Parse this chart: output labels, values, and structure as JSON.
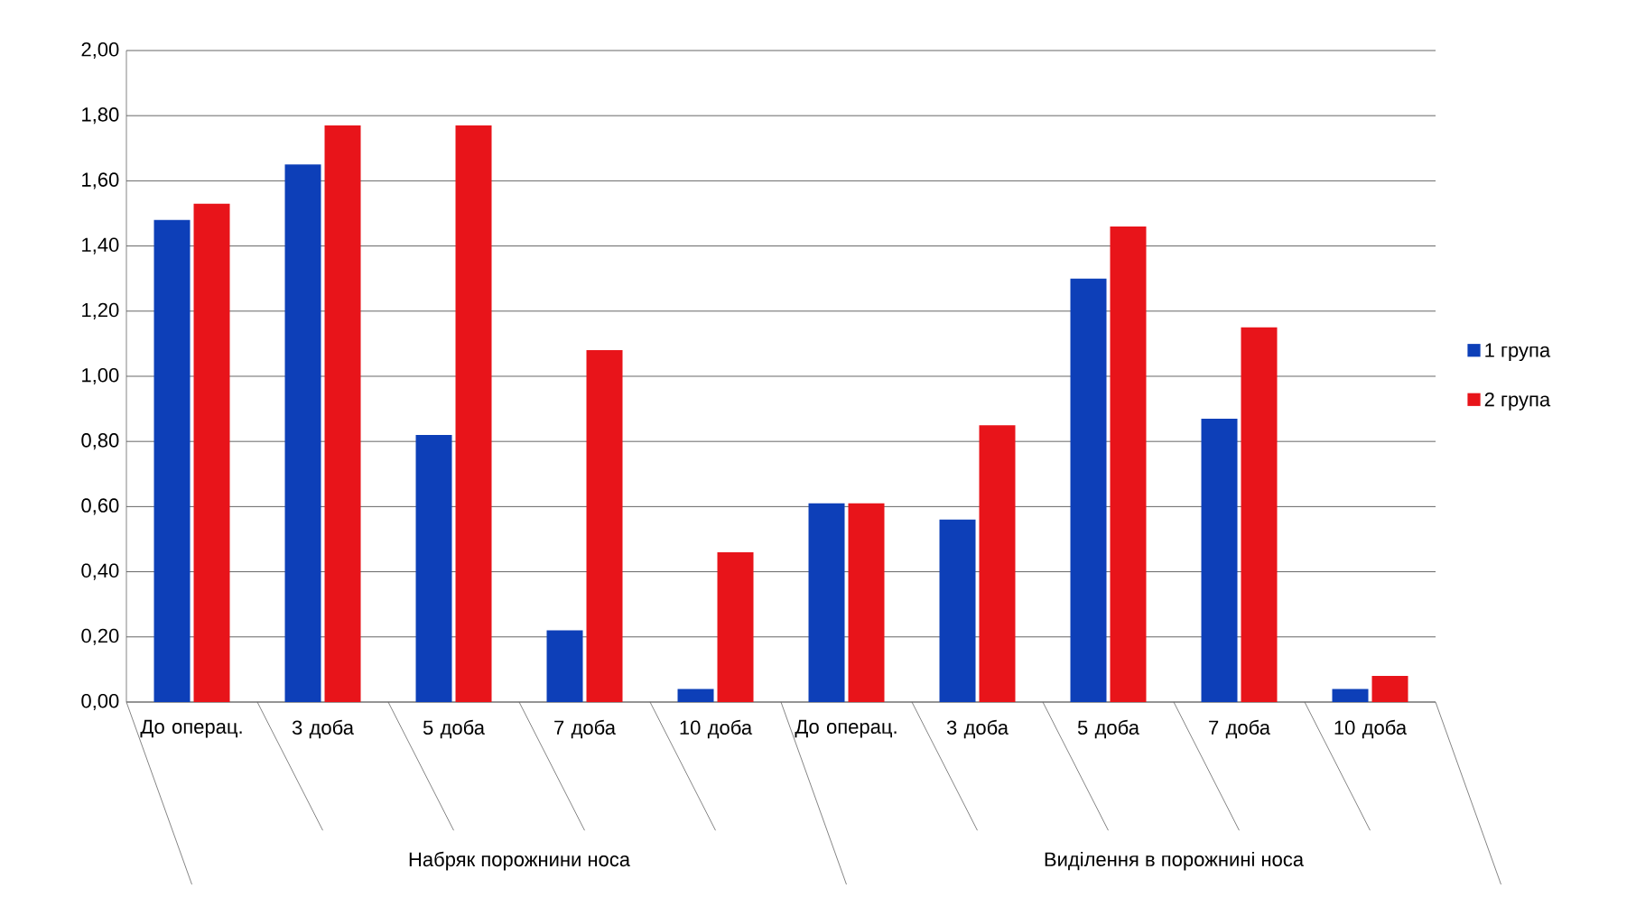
{
  "chart_data": {
    "type": "bar",
    "categories": [
      "До операц.",
      "3 доба",
      "5 доба",
      "7 доба",
      "10 доба",
      "До операц.",
      "3 доба",
      "5 доба",
      "7 доба",
      "10 доба"
    ],
    "series": [
      {
        "name": "1 група",
        "color": "#0d3fb8",
        "values": [
          1.48,
          1.65,
          0.82,
          0.22,
          0.04,
          0.61,
          0.56,
          1.3,
          0.87,
          0.04
        ]
      },
      {
        "name": "2 група",
        "color": "#e8141a",
        "values": [
          1.53,
          1.77,
          1.77,
          1.08,
          0.46,
          0.61,
          0.85,
          1.46,
          1.15,
          0.08
        ]
      }
    ],
    "annotations": [
      "Набряк порожнини носа",
      "Виділення в порожнині носа"
    ],
    "ylim": [
      0,
      2
    ],
    "yticks": [
      {
        "value": 0,
        "label": "0,00"
      },
      {
        "value": 0.2,
        "label": "0,20"
      },
      {
        "value": 0.4,
        "label": "0,40"
      },
      {
        "value": 0.6,
        "label": "0,60"
      },
      {
        "value": 0.8,
        "label": "0,80"
      },
      {
        "value": 1.0,
        "label": "1,00"
      },
      {
        "value": 1.2,
        "label": "1,20"
      },
      {
        "value": 1.4,
        "label": "1,40"
      },
      {
        "value": 1.6,
        "label": "1,60"
      },
      {
        "value": 1.8,
        "label": "1,80"
      },
      {
        "value": 2.0,
        "label": "2,00"
      }
    ],
    "grid": "y",
    "legend": "right"
  }
}
